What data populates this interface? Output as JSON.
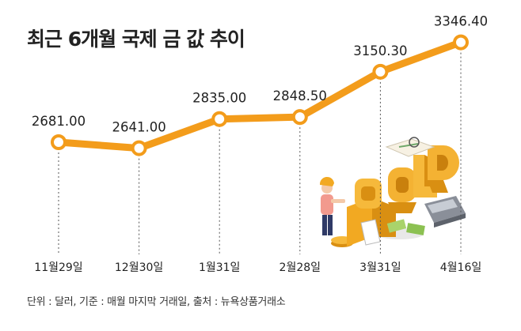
{
  "title": "최근 6개월 국제 금 값 추이",
  "footnote": "단위 : 달러, 기준 : 매월 마지막 거래일, 출처 : 뉴욕상품거래소",
  "colors": {
    "line": "#f39c1b",
    "marker_fill": "#ffffff",
    "text": "#222222",
    "guide": "#555555"
  },
  "illustration": {
    "name": "gold-letters-illustration",
    "letters": [
      "G",
      "O",
      "L",
      "D"
    ]
  },
  "chart_data": {
    "type": "line",
    "title": "최근 6개월 국제 금 값 추이",
    "categories": [
      "11월29일",
      "12월30일",
      "1월31일",
      "2월28일",
      "3월31일",
      "4월16일"
    ],
    "values": [
      2681.0,
      2641.0,
      2835.0,
      2848.5,
      3150.3,
      3346.4
    ],
    "value_labels": [
      "2681.00",
      "2641.00",
      "2835.00",
      "2848.50",
      "3150.30",
      "3346.40"
    ],
    "ylim": [
      2000,
      3500
    ],
    "grid": false,
    "legend": "none",
    "unit": "달러"
  }
}
